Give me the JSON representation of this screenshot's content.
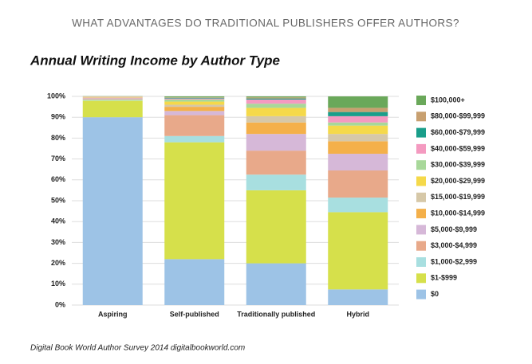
{
  "header": "WHAT ADVANTAGES DO TRADITIONAL PUBLISHERS OFFER AUTHORS?",
  "footer": "Digital Book World Author Survey 2014 digitalbookworld.com",
  "chart_data": {
    "type": "stacked_bar",
    "title": "Annual Writing Income by Author Type",
    "categories": [
      "Aspiring",
      "Self-published",
      "Traditionally published",
      "Hybrid"
    ],
    "ylim": [
      0,
      100
    ],
    "yticks": [
      {
        "value": 0,
        "label": "0%"
      },
      {
        "value": 10,
        "label": "10%"
      },
      {
        "value": 20,
        "label": "20%"
      },
      {
        "value": 30,
        "label": "30%"
      },
      {
        "value": 40,
        "label": "40%"
      },
      {
        "value": 50,
        "label": "50%"
      },
      {
        "value": 60,
        "label": "60%"
      },
      {
        "value": 70,
        "label": "70%"
      },
      {
        "value": 80,
        "label": "80%"
      },
      {
        "value": 90,
        "label": "90%"
      },
      {
        "value": 100,
        "label": "100%"
      }
    ],
    "grid": true,
    "legend": "right",
    "series": [
      {
        "name": "$0",
        "color": "#9dc3e6",
        "values": [
          90,
          22,
          20,
          7.5
        ]
      },
      {
        "name": "$1-$999",
        "color": "#d6e04b",
        "values": [
          8,
          56,
          35,
          37
        ]
      },
      {
        "name": "$1,000-$2,999",
        "color": "#a8dfe0",
        "values": [
          0.5,
          3,
          7.5,
          7
        ]
      },
      {
        "name": "$3,000-$4,999",
        "color": "#e8a98a",
        "values": [
          0.5,
          10,
          11.5,
          13
        ]
      },
      {
        "name": "$5,000-$9,999",
        "color": "#d6b8d8",
        "values": [
          0.3,
          2,
          8,
          8
        ]
      },
      {
        "name": "$10,000-$14,999",
        "color": "#f4b04a",
        "values": [
          0.2,
          2,
          5.5,
          6
        ]
      },
      {
        "name": "$15,000-$19,999",
        "color": "#d6c8a8",
        "values": [
          0.2,
          1,
          3,
          3.5
        ]
      },
      {
        "name": "$20,000-$29,999",
        "color": "#f5d94a",
        "values": [
          0.1,
          1.5,
          4,
          4
        ]
      },
      {
        "name": "$30,000-$39,999",
        "color": "#a8d89a",
        "values": [
          0.1,
          1,
          2,
          1.5
        ]
      },
      {
        "name": "$40,000-$59,999",
        "color": "#f49ac0",
        "values": [
          0.1,
          0.5,
          2,
          3
        ]
      },
      {
        "name": "$60,000-$79,999",
        "color": "#1a9e8a",
        "values": [
          0,
          0.3,
          0.5,
          2
        ]
      },
      {
        "name": "$80,000-$99,999",
        "color": "#c8a070",
        "values": [
          0,
          0.2,
          0.5,
          2
        ]
      },
      {
        "name": "$100,000+",
        "color": "#6aa85a",
        "values": [
          0.1,
          0.5,
          0.5,
          5.5
        ]
      }
    ]
  }
}
